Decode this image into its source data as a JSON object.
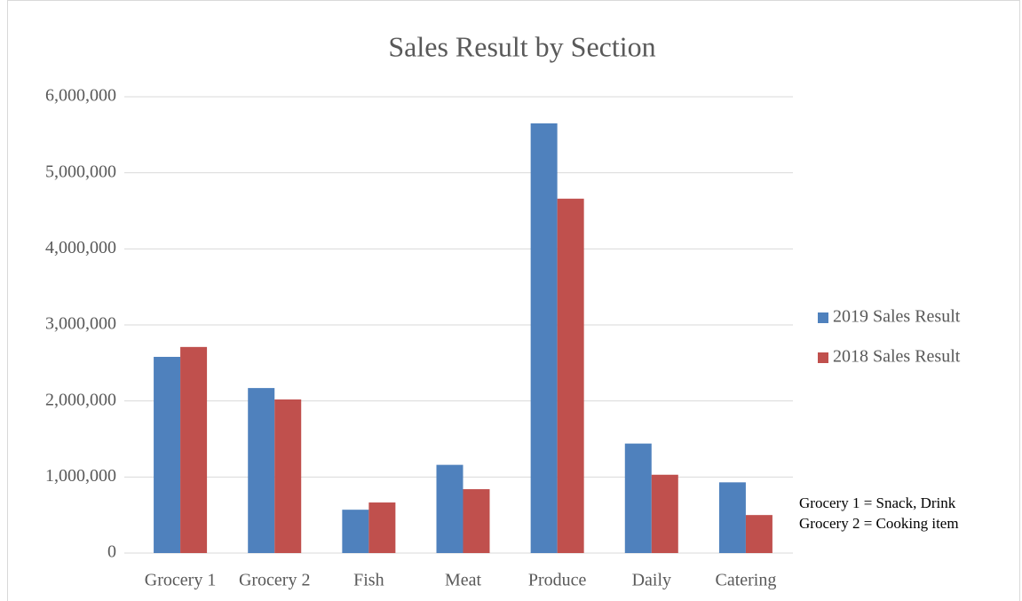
{
  "chart_data": {
    "type": "bar",
    "title": "Sales Result by Section",
    "categories": [
      "Grocery 1",
      "Grocery 2",
      "Fish",
      "Meat",
      "Produce",
      "Daily",
      "Catering"
    ],
    "series": [
      {
        "name": "2019 Sales Result",
        "color": "#4f81bd",
        "values": [
          2580000,
          2170000,
          570000,
          1160000,
          5650000,
          1440000,
          930000
        ]
      },
      {
        "name": "2018 Sales Result",
        "color": "#c0504d",
        "values": [
          2710000,
          2020000,
          665000,
          840000,
          4660000,
          1030000,
          500000
        ]
      }
    ],
    "ylim": [
      0,
      6000000
    ],
    "yticks": [
      0,
      {
        "value": 1000000,
        "label": "1,000,000"
      },
      {
        "value": 2000000,
        "label": "2,000,000"
      },
      {
        "value": 3000000,
        "label": "3,000,000"
      },
      {
        "value": 4000000,
        "label": "4,000,000"
      },
      {
        "value": 5000000,
        "label": "5,000,000"
      },
      {
        "value": 6000000,
        "label": "6,000,000"
      }
    ],
    "grid": true,
    "legend": "right",
    "annotations": [
      "Grocery 1 = Snack, Drink",
      "Grocery 2 = Cooking item"
    ]
  }
}
